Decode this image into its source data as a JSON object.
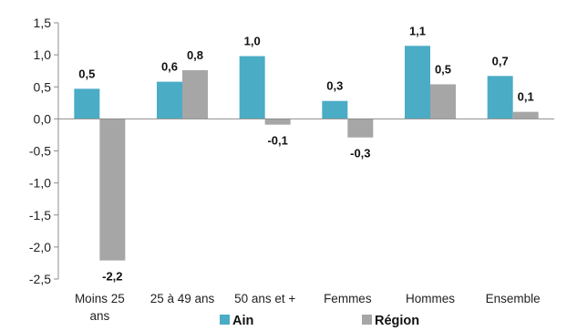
{
  "chart_data": {
    "type": "bar",
    "categories": [
      "Moins 25 ans",
      "25 à 49 ans",
      "50 ans et +",
      "Femmes",
      "Hommes",
      "Ensemble"
    ],
    "series": [
      {
        "name": "Ain",
        "values": [
          0.47,
          0.58,
          0.98,
          0.28,
          1.14,
          0.67
        ],
        "labels": [
          "0,5",
          "0,6",
          "1,0",
          "0,3",
          "1,1",
          "0,7"
        ],
        "color": "#4BACC6"
      },
      {
        "name": "Région",
        "values": [
          -2.21,
          0.76,
          -0.09,
          -0.29,
          0.54,
          0.11
        ],
        "labels": [
          "-2,2",
          "0,8",
          "-0,1",
          "-0,3",
          "0,5",
          "0,1"
        ],
        "color": "#A6A6A6"
      }
    ],
    "ylim": [
      -2.5,
      1.5
    ],
    "yticks": [
      -2.5,
      -2.0,
      -1.5,
      -1.0,
      -0.5,
      0.0,
      0.5,
      1.0,
      1.5
    ],
    "ytick_labels": [
      "-2,5",
      "-2,0",
      "-1,5",
      "-1,0",
      "-0,5",
      "0,0",
      "0,5",
      "1,0",
      "1,5"
    ],
    "legend": "bottom",
    "grid": false
  }
}
